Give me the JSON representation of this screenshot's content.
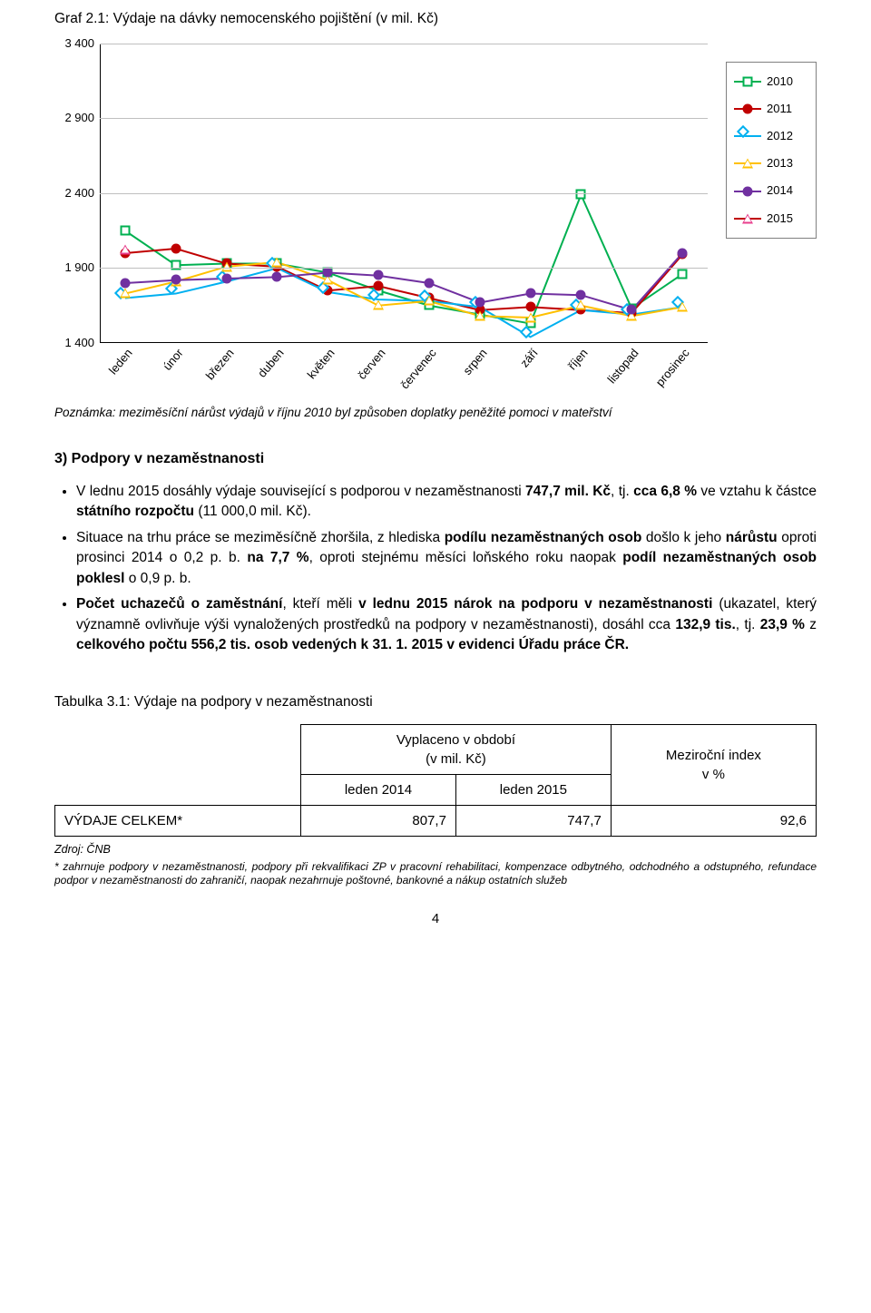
{
  "chart": {
    "title": "Graf 2.1: Výdaje na dávky nemocenského pojištění (v mil. Kč)",
    "type": "line",
    "ylim": [
      1400,
      3400
    ],
    "ytick_step": 500,
    "yticks": [
      1400,
      1900,
      2400,
      2900,
      3400
    ],
    "grid_color": "#bfbfbf",
    "axis_color": "#000000",
    "background": "#ffffff",
    "x_categories": [
      "leden",
      "únor",
      "březen",
      "duben",
      "květen",
      "červen",
      "červenec",
      "srpen",
      "září",
      "říjen",
      "listopad",
      "prosinec"
    ],
    "series": [
      {
        "name": "2010",
        "color": "#00b050",
        "line_width": 2,
        "marker": "square",
        "values": [
          2150,
          1920,
          1930,
          1930,
          1870,
          1750,
          1650,
          1590,
          1530,
          2390,
          1630,
          1860
        ]
      },
      {
        "name": "2011",
        "color": "#c00000",
        "line_width": 2,
        "marker": "circle",
        "values": [
          2000,
          2030,
          1930,
          1910,
          1750,
          1780,
          1700,
          1620,
          1640,
          1620,
          1600,
          1990
        ]
      },
      {
        "name": "2012",
        "color": "#00b0f0",
        "line_width": 2,
        "marker": "diamond",
        "values": [
          1700,
          1730,
          1810,
          1900,
          1740,
          1690,
          1680,
          1640,
          1440,
          1620,
          1590,
          1640
        ]
      },
      {
        "name": "2013",
        "color": "#ffc000",
        "line_width": 2,
        "marker": "triangle",
        "values": [
          1730,
          1810,
          1910,
          1940,
          1820,
          1650,
          1680,
          1580,
          1570,
          1650,
          1580,
          1640
        ]
      },
      {
        "name": "2014",
        "color": "#7030a0",
        "line_width": 2,
        "marker": "circle-fill",
        "values": [
          1800,
          1820,
          1830,
          1840,
          1870,
          1850,
          1800,
          1670,
          1730,
          1720,
          1620,
          2000
        ]
      },
      {
        "name": "2015",
        "color": "#c00000",
        "line_width": 2,
        "marker": "triangle-pink",
        "values": [
          2020,
          null,
          null,
          null,
          null,
          null,
          null,
          null,
          null,
          null,
          null,
          null
        ]
      }
    ],
    "legend": [
      "2010",
      "2011",
      "2012",
      "2013",
      "2014",
      "2015"
    ],
    "x_label_fontsize": 13,
    "y_label_fontsize": 13
  },
  "note": "Poznámka: meziměsíční nárůst výdajů v říjnu 2010 byl způsoben doplatky peněžité pomoci v mateřství",
  "section": {
    "title": "3) Podpory v nezaměstnanosti",
    "bullets": [
      {
        "html": "V lednu 2015 dosáhly výdaje související s podporou v nezaměstnanosti <b>747,7 mil. Kč</b>, tj. <b>cca 6,8 %</b> ve vztahu k částce <b>státního rozpočtu</b> (11 000,0 mil. Kč)."
      },
      {
        "html": "Situace na trhu práce se meziměsíčně zhoršila, z hlediska <b>podílu nezaměstnaných osob</b> došlo k jeho <b>nárůstu</b> oproti prosinci 2014 o 0,2 p. b. <b>na 7,7 %</b>, oproti stejnému měsíci loňského roku naopak <b>podíl nezaměstnaných osob poklesl</b> o 0,9 p. b."
      },
      {
        "html": "<b>Počet uchazečů o zaměstnání</b>, kteří měli <b>v lednu 2015 nárok na podporu v nezaměstnanosti</b> (ukazatel, který významně ovlivňuje výši vynaložených prostředků na podpory v nezaměstnanosti), dosáhl cca <b>132,9 tis.</b>, tj. <b>23,9 %</b> z <b>celkového počtu 556,2 tis. osob vedených k 31. 1. 2015 v evidenci Úřadu práce ČR.</b>"
      }
    ]
  },
  "table": {
    "title": "Tabulka 3.1: Výdaje na podpory v nezaměstnanosti",
    "header_group": "Vyplaceno v období\n(v mil. Kč)",
    "col_period1": "leden 2014",
    "col_period2": "leden 2015",
    "col_index": "Meziroční index\nv %",
    "row_label": "VÝDAJE CELKEM*",
    "row_vals": [
      "807,7",
      "747,7",
      "92,6"
    ]
  },
  "source": "Zdroj: ČNB",
  "footnote": "* zahrnuje podpory v nezaměstnanosti, podpory při rekvalifikaci ZP v pracovní rehabilitaci, kompenzace odbytného, odchodného a odstupného, refundace podpor v nezaměstnanosti do zahraničí, naopak nezahrnuje poštovné, bankovné a nákup ostatních služeb",
  "page_number": "4"
}
